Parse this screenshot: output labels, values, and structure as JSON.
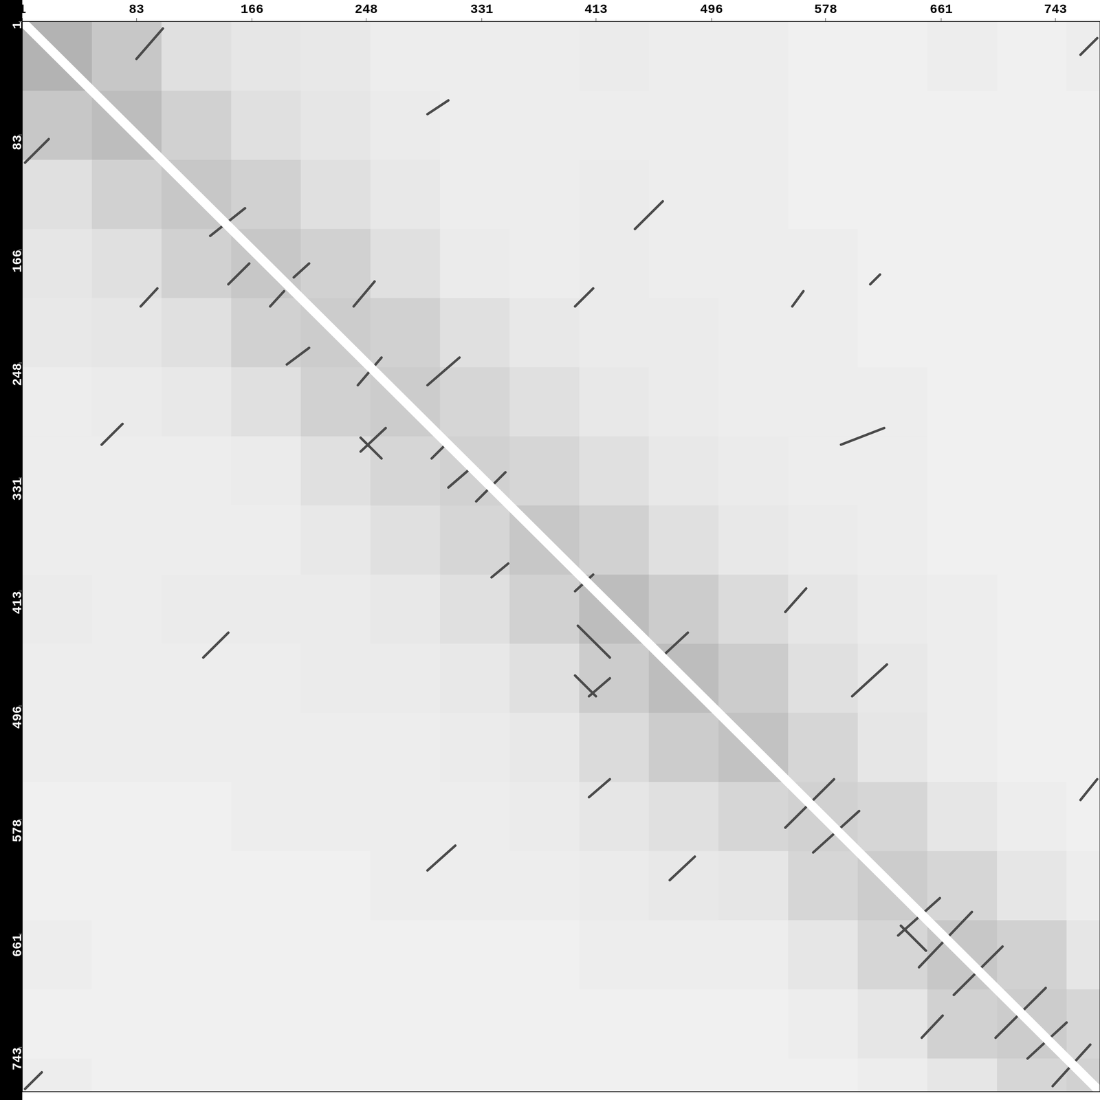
{
  "chart_data": {
    "type": "dot_plot",
    "xlim": [
      1,
      775
    ],
    "ylim": [
      1,
      775
    ],
    "xticks": [
      1,
      83,
      166,
      248,
      331,
      413,
      496,
      578,
      661,
      743
    ],
    "yticks": [
      1,
      83,
      166,
      248,
      331,
      413,
      496,
      578,
      661,
      743
    ],
    "grid": false,
    "zlim": [
      0,
      1
    ],
    "cell_edges": [
      1,
      51,
      101,
      151,
      201,
      251,
      301,
      351,
      401,
      451,
      501,
      551,
      601,
      651,
      701,
      751,
      775
    ],
    "cells": [
      [
        0.3,
        0.22,
        0.12,
        0.1,
        0.09,
        0.07,
        0.07,
        0.07,
        0.08,
        0.07,
        0.07,
        0.06,
        0.06,
        0.07,
        0.06,
        0.07
      ],
      [
        0.22,
        0.26,
        0.18,
        0.12,
        0.1,
        0.08,
        0.07,
        0.07,
        0.07,
        0.07,
        0.07,
        0.06,
        0.06,
        0.06,
        0.06,
        0.06
      ],
      [
        0.12,
        0.18,
        0.22,
        0.18,
        0.12,
        0.09,
        0.07,
        0.07,
        0.08,
        0.07,
        0.07,
        0.06,
        0.06,
        0.06,
        0.06,
        0.06
      ],
      [
        0.1,
        0.12,
        0.18,
        0.22,
        0.18,
        0.12,
        0.08,
        0.07,
        0.08,
        0.07,
        0.07,
        0.07,
        0.06,
        0.06,
        0.06,
        0.06
      ],
      [
        0.09,
        0.1,
        0.12,
        0.18,
        0.2,
        0.18,
        0.12,
        0.09,
        0.08,
        0.08,
        0.07,
        0.07,
        0.06,
        0.06,
        0.06,
        0.06
      ],
      [
        0.07,
        0.08,
        0.09,
        0.12,
        0.18,
        0.2,
        0.16,
        0.12,
        0.09,
        0.08,
        0.07,
        0.07,
        0.07,
        0.06,
        0.06,
        0.06
      ],
      [
        0.07,
        0.07,
        0.07,
        0.08,
        0.12,
        0.16,
        0.18,
        0.16,
        0.12,
        0.09,
        0.08,
        0.07,
        0.07,
        0.06,
        0.06,
        0.06
      ],
      [
        0.07,
        0.07,
        0.07,
        0.07,
        0.09,
        0.12,
        0.16,
        0.22,
        0.18,
        0.12,
        0.09,
        0.08,
        0.07,
        0.06,
        0.06,
        0.06
      ],
      [
        0.08,
        0.07,
        0.08,
        0.08,
        0.08,
        0.09,
        0.12,
        0.18,
        0.26,
        0.2,
        0.14,
        0.1,
        0.08,
        0.07,
        0.06,
        0.06
      ],
      [
        0.07,
        0.07,
        0.07,
        0.07,
        0.08,
        0.08,
        0.09,
        0.12,
        0.2,
        0.26,
        0.2,
        0.12,
        0.09,
        0.07,
        0.06,
        0.06
      ],
      [
        0.07,
        0.07,
        0.07,
        0.07,
        0.07,
        0.07,
        0.08,
        0.09,
        0.14,
        0.2,
        0.24,
        0.16,
        0.1,
        0.07,
        0.06,
        0.06
      ],
      [
        0.06,
        0.06,
        0.06,
        0.07,
        0.07,
        0.07,
        0.07,
        0.08,
        0.1,
        0.12,
        0.16,
        0.18,
        0.16,
        0.1,
        0.07,
        0.06
      ],
      [
        0.06,
        0.06,
        0.06,
        0.06,
        0.06,
        0.07,
        0.07,
        0.07,
        0.08,
        0.09,
        0.1,
        0.16,
        0.2,
        0.16,
        0.1,
        0.07
      ],
      [
        0.07,
        0.06,
        0.06,
        0.06,
        0.06,
        0.06,
        0.06,
        0.06,
        0.07,
        0.07,
        0.07,
        0.1,
        0.16,
        0.22,
        0.18,
        0.1
      ],
      [
        0.06,
        0.06,
        0.06,
        0.06,
        0.06,
        0.06,
        0.06,
        0.06,
        0.06,
        0.06,
        0.06,
        0.07,
        0.1,
        0.18,
        0.2,
        0.16
      ],
      [
        0.07,
        0.06,
        0.06,
        0.06,
        0.06,
        0.06,
        0.06,
        0.06,
        0.06,
        0.06,
        0.06,
        0.06,
        0.07,
        0.1,
        0.16,
        0.18
      ]
    ],
    "color": "#4a4a4a",
    "segments": [
      [
        83,
        28,
        102,
        6
      ],
      [
        3,
        103,
        20,
        86
      ],
      [
        136,
        156,
        161,
        136
      ],
      [
        149,
        191,
        164,
        176
      ],
      [
        179,
        207,
        189,
        196
      ],
      [
        196,
        186,
        207,
        176
      ],
      [
        86,
        207,
        98,
        194
      ],
      [
        191,
        249,
        207,
        237
      ],
      [
        239,
        207,
        254,
        189
      ],
      [
        242,
        264,
        259,
        244
      ],
      [
        292,
        264,
        315,
        244
      ],
      [
        244,
        312,
        262,
        295
      ],
      [
        295,
        317,
        307,
        305
      ],
      [
        307,
        338,
        322,
        325
      ],
      [
        327,
        348,
        348,
        327
      ],
      [
        441,
        151,
        461,
        131
      ],
      [
        398,
        207,
        411,
        194
      ],
      [
        292,
        68,
        307,
        58
      ],
      [
        338,
        403,
        350,
        393
      ],
      [
        398,
        413,
        411,
        401
      ],
      [
        408,
        489,
        423,
        476
      ],
      [
        398,
        474,
        413,
        489
      ],
      [
        463,
        458,
        479,
        443
      ],
      [
        549,
        428,
        564,
        411
      ],
      [
        597,
        489,
        622,
        466
      ],
      [
        549,
        584,
        584,
        549
      ],
      [
        569,
        602,
        602,
        572
      ],
      [
        630,
        662,
        660,
        635
      ],
      [
        645,
        685,
        683,
        645
      ],
      [
        670,
        705,
        705,
        670
      ],
      [
        700,
        736,
        736,
        700
      ],
      [
        723,
        751,
        751,
        725
      ],
      [
        741,
        771,
        768,
        741
      ],
      [
        761,
        564,
        773,
        549
      ],
      [
        131,
        461,
        149,
        443
      ],
      [
        589,
        307,
        620,
        295
      ],
      [
        408,
        562,
        423,
        549
      ],
      [
        466,
        622,
        484,
        605
      ],
      [
        292,
        615,
        312,
        597
      ],
      [
        647,
        736,
        662,
        720
      ],
      [
        761,
        25,
        773,
        13
      ],
      [
        3,
        773,
        15,
        761
      ],
      [
        58,
        307,
        73,
        292
      ],
      [
        610,
        191,
        617,
        184
      ],
      [
        554,
        207,
        562,
        196
      ],
      [
        244,
        302,
        259,
        317
      ],
      [
        400,
        438,
        423,
        461
      ],
      [
        632,
        655,
        650,
        673
      ]
    ],
    "diagonal": [
      1,
      1,
      775,
      775
    ]
  }
}
